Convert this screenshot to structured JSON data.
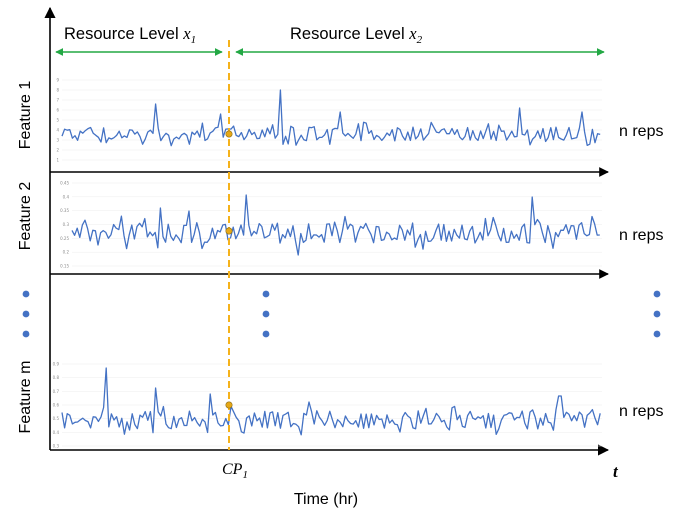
{
  "regions": {
    "left_label": "Resource Level ",
    "left_math": "x",
    "left_sub": "1",
    "right_label": "Resource Level ",
    "right_math": "x",
    "right_sub": "2"
  },
  "features": [
    {
      "label": "Feature 1",
      "reps": "n reps",
      "ticks": [
        "9",
        "8",
        "7",
        "6",
        "5",
        "4",
        "3",
        "2",
        "1"
      ]
    },
    {
      "label": "Feature 2",
      "reps": "n reps",
      "ticks": [
        "0.45",
        "0.4",
        "0.35",
        "0.3",
        "0.25",
        "0.2",
        "0.15"
      ]
    },
    {
      "label": "Feature m",
      "reps": "n reps",
      "ticks": [
        "0.9",
        "0.8",
        "0.7",
        "0.6",
        "0.5",
        "0.4",
        "0.3"
      ]
    }
  ],
  "changepoint": {
    "math": "CP",
    "sub": "1"
  },
  "axis": {
    "t_label": "t",
    "xlabel": "Time (hr)"
  },
  "colors": {
    "series": "#4472c4",
    "changepoint_line": "#f5b21b",
    "changepoint_marker": "#e6a817",
    "region_arrow": "#23a844",
    "dots": "#4472c4",
    "axis": "#000000",
    "grid": "#d9d9d9"
  }
}
